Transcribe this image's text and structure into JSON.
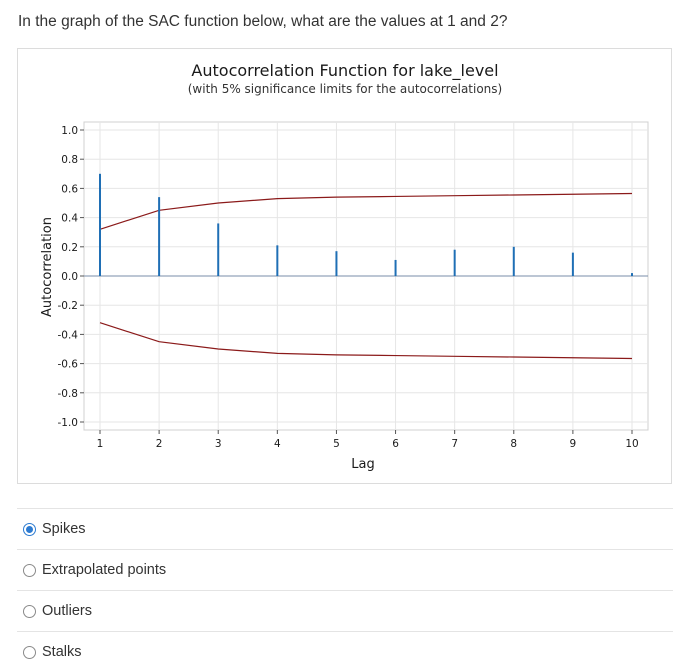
{
  "question": {
    "text": "In the graph of the SAC function below, what are the values at 1 and 2?"
  },
  "chart_data": {
    "type": "bar",
    "title": "Autocorrelation Function for lake_level",
    "subtitle": "(with 5% significance limits for the autocorrelations)",
    "xlabel": "Lag",
    "ylabel": "Autocorrelation",
    "x": [
      1,
      2,
      3,
      4,
      5,
      6,
      7,
      8,
      9,
      10
    ],
    "values": [
      0.7,
      0.54,
      0.36,
      0.21,
      0.17,
      0.11,
      0.18,
      0.2,
      0.16,
      0.02
    ],
    "upper_limit": [
      0.32,
      0.45,
      0.5,
      0.53,
      0.54,
      0.545,
      0.55,
      0.555,
      0.56,
      0.565
    ],
    "lower_limit": [
      -0.32,
      -0.45,
      -0.5,
      -0.53,
      -0.54,
      -0.545,
      -0.55,
      -0.555,
      -0.56,
      -0.565
    ],
    "ylim": [
      -1.0,
      1.0
    ],
    "xlim": [
      1,
      10
    ],
    "yticks": [
      "1.0",
      "0.8",
      "0.6",
      "0.4",
      "0.2",
      "0.0",
      "-0.2",
      "-0.4",
      "-0.6",
      "-0.8",
      "-1.0"
    ],
    "xticks": [
      "1",
      "2",
      "3",
      "4",
      "5",
      "6",
      "7",
      "8",
      "9",
      "10"
    ],
    "grid": true,
    "colors": {
      "bars": "#1f6fb5",
      "limits": "#8b1a1a",
      "grid": "#e6e6e6"
    }
  },
  "options": [
    {
      "label": "Spikes",
      "selected": true
    },
    {
      "label": "Extrapolated points",
      "selected": false
    },
    {
      "label": "Outliers",
      "selected": false
    },
    {
      "label": "Stalks",
      "selected": false
    }
  ]
}
